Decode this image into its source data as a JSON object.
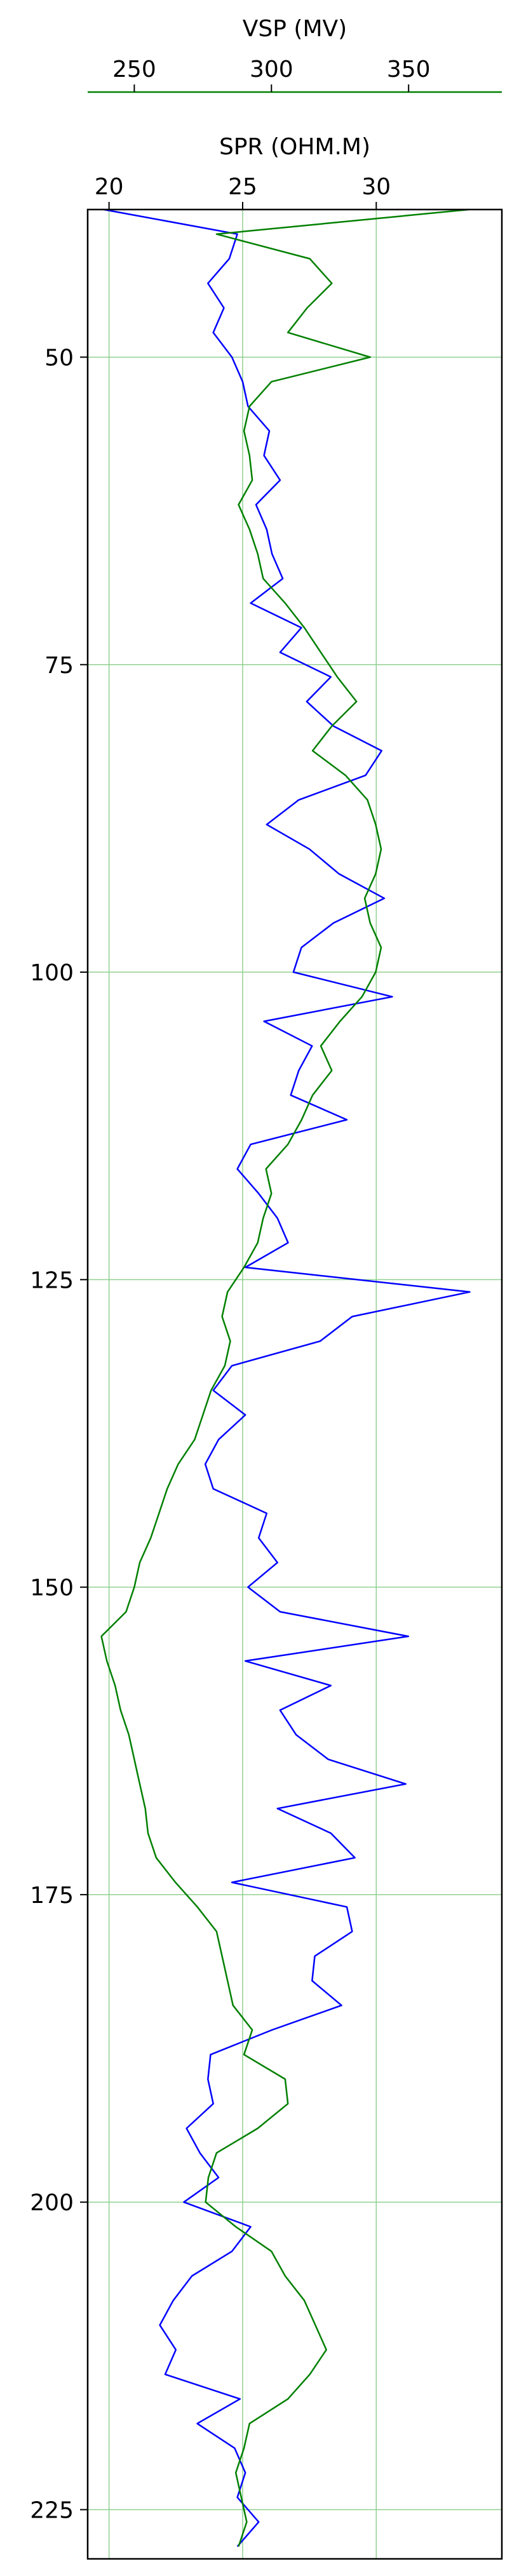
{
  "chart_data": {
    "type": "line",
    "title": "",
    "y_axis": {
      "label": "",
      "inverted": true,
      "range": [
        38,
        229
      ],
      "ticks": [
        50,
        75,
        100,
        125,
        150,
        175,
        200,
        225
      ]
    },
    "x_axes": [
      {
        "id": "spr",
        "label": "SPR (OHM.M)",
        "color": "#0000ff",
        "range": [
          19.2,
          34.7
        ],
        "ticks": [
          20,
          25,
          30
        ],
        "placement": "top-inner"
      },
      {
        "id": "vsp",
        "label": "VSP (MV)",
        "color": "#008000",
        "range": [
          233,
          384
        ],
        "ticks": [
          250,
          300,
          350
        ],
        "placement": "top-outer"
      }
    ],
    "grid": true,
    "grid_color": "#90d090",
    "series": [
      {
        "name": "",
        "axis": "spr",
        "color": "#0000ff",
        "depth": [
          38,
          40,
          42,
          44,
          46,
          48,
          50,
          52,
          54,
          56,
          58,
          60,
          62,
          64,
          66,
          68,
          70,
          72,
          74,
          76,
          78,
          80,
          82,
          84,
          86,
          88,
          90,
          92,
          94,
          96,
          98,
          100,
          102,
          104,
          106,
          108,
          110,
          112,
          114,
          116,
          118,
          120,
          122,
          124,
          126,
          128,
          130,
          132,
          134,
          136,
          138,
          140,
          142,
          144,
          146,
          148,
          150,
          152,
          154,
          156,
          158,
          160,
          162,
          164,
          166,
          168,
          170,
          172,
          174,
          176,
          178,
          180,
          182,
          184,
          186,
          188,
          190,
          192,
          194,
          196,
          198,
          200,
          202,
          204,
          206,
          208,
          210,
          212,
          214,
          216,
          218,
          220,
          222,
          224,
          226,
          228
        ],
        "values": [
          19.8,
          24.8,
          24.5,
          23.7,
          24.3,
          23.9,
          24.6,
          25.0,
          25.2,
          26.0,
          25.8,
          26.4,
          25.5,
          25.9,
          26.1,
          26.5,
          25.3,
          27.2,
          26.4,
          28.3,
          27.4,
          28.4,
          30.2,
          29.6,
          27.1,
          25.9,
          27.5,
          28.6,
          30.3,
          28.4,
          27.2,
          26.9,
          30.6,
          25.8,
          27.6,
          27.1,
          26.8,
          28.9,
          25.3,
          24.8,
          25.6,
          26.3,
          26.7,
          25.1,
          33.5,
          29.1,
          27.9,
          24.6,
          23.9,
          25.1,
          24.1,
          23.6,
          23.9,
          25.9,
          25.6,
          26.3,
          25.2,
          26.4,
          31.2,
          25.1,
          28.3,
          26.4,
          27.0,
          28.2,
          31.1,
          26.3,
          28.3,
          29.2,
          24.6,
          28.9,
          29.1,
          27.7,
          27.6,
          28.7,
          26.1,
          23.8,
          23.7,
          23.9,
          22.9,
          23.4,
          24.1,
          22.8,
          25.3,
          24.6,
          23.1,
          22.4,
          21.9,
          22.5,
          22.1,
          24.9,
          23.3,
          24.7,
          25.1,
          24.8,
          25.6,
          24.8
        ]
      },
      {
        "name": "",
        "axis": "vsp",
        "color": "#008000",
        "depth": [
          38,
          40,
          42,
          44,
          46,
          48,
          50,
          52,
          54,
          56,
          58,
          60,
          62,
          64,
          66,
          68,
          70,
          72,
          74,
          76,
          78,
          80,
          82,
          84,
          86,
          88,
          90,
          92,
          94,
          96,
          98,
          100,
          102,
          104,
          106,
          108,
          110,
          112,
          114,
          116,
          118,
          120,
          122,
          124,
          126,
          128,
          130,
          132,
          134,
          136,
          138,
          140,
          142,
          144,
          146,
          148,
          150,
          152,
          154,
          156,
          158,
          160,
          162,
          164,
          166,
          168,
          170,
          172,
          174,
          176,
          178,
          180,
          182,
          184,
          186,
          188,
          190,
          192,
          194,
          196,
          198,
          200,
          202,
          204,
          206,
          208,
          210,
          212,
          214,
          216,
          218,
          220,
          222,
          224,
          226,
          228
        ],
        "values": [
          372,
          280,
          314,
          322,
          313,
          306,
          336,
          300,
          292,
          290,
          292,
          293,
          288,
          292,
          295,
          297,
          305,
          312,
          318,
          324,
          331,
          322,
          315,
          327,
          335,
          338,
          340,
          338,
          334,
          336,
          340,
          338,
          333,
          325,
          318,
          322,
          315,
          311,
          306,
          298,
          300,
          297,
          295,
          290,
          284,
          282,
          285,
          283,
          278,
          275,
          272,
          266,
          262,
          259,
          256,
          252,
          250,
          247,
          238,
          240,
          243,
          245,
          248,
          250,
          252,
          254,
          255,
          258,
          265,
          273,
          280,
          282,
          284,
          286,
          293,
          290,
          305,
          306,
          295,
          280,
          277,
          276,
          287,
          300,
          305,
          312,
          316,
          320,
          314,
          306,
          292,
          290,
          287,
          289,
          291,
          288
        ]
      }
    ]
  }
}
